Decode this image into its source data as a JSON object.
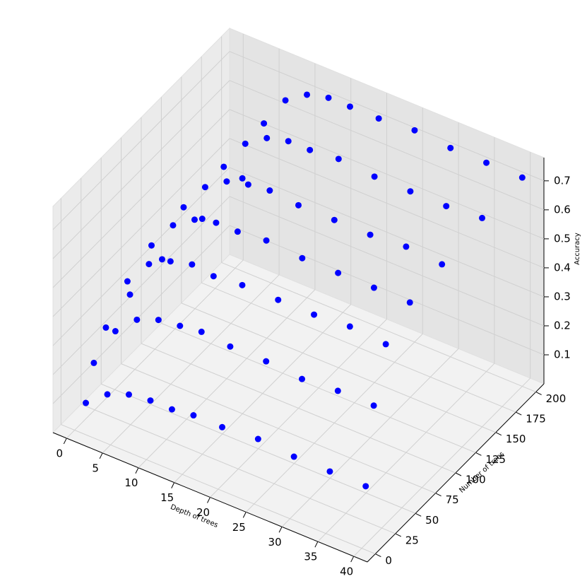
{
  "chart_data": {
    "type": "scatter3d",
    "xlabel": "Depth of trees",
    "ylabel": "Number of trees",
    "zlabel": "Accuracy",
    "color": "#0000ff",
    "xlim": [
      -1.9,
      41.9
    ],
    "ylim": [
      -10,
      210
    ],
    "zlim": [
      0.0,
      0.78
    ],
    "xticks": [
      0,
      5,
      10,
      15,
      20,
      25,
      30,
      35,
      40
    ],
    "yticks": [
      0,
      25,
      50,
      75,
      100,
      125,
      150,
      175,
      200
    ],
    "zticks": [
      0.1,
      0.2,
      0.3,
      0.4,
      0.5,
      0.6,
      0.7
    ],
    "grid": true,
    "x": [
      1,
      1,
      1,
      1,
      1,
      1,
      1,
      4,
      4,
      4,
      4,
      4,
      4,
      4,
      7,
      7,
      7,
      7,
      7,
      7,
      7,
      10,
      10,
      10,
      10,
      10,
      10,
      10,
      13,
      13,
      13,
      13,
      13,
      13,
      13,
      16,
      16,
      16,
      16,
      16,
      16,
      16,
      20,
      20,
      20,
      20,
      20,
      20,
      20,
      25,
      25,
      25,
      25,
      25,
      25,
      25,
      30,
      30,
      30,
      30,
      30,
      30,
      30,
      35,
      35,
      35,
      35,
      35,
      35,
      35,
      40,
      40,
      40,
      40,
      40,
      40,
      40
    ],
    "y": [
      5,
      15,
      30,
      60,
      100,
      150,
      200,
      5,
      15,
      30,
      60,
      100,
      150,
      200,
      5,
      15,
      30,
      60,
      100,
      150,
      200,
      5,
      15,
      30,
      60,
      100,
      150,
      200,
      5,
      15,
      30,
      60,
      100,
      150,
      200,
      5,
      15,
      30,
      60,
      100,
      150,
      200,
      5,
      15,
      30,
      60,
      100,
      150,
      200,
      5,
      15,
      30,
      60,
      100,
      150,
      200,
      5,
      15,
      30,
      60,
      100,
      150,
      200,
      5,
      15,
      30,
      60,
      100,
      150,
      200,
      5,
      15,
      30,
      60,
      100,
      150,
      200
    ],
    "z": [
      0.09,
      0.2,
      0.28,
      0.31,
      0.32,
      0.32,
      0.32,
      0.15,
      0.34,
      0.47,
      0.51,
      0.53,
      0.53,
      0.54,
      0.18,
      0.41,
      0.56,
      0.61,
      0.63,
      0.64,
      0.65,
      0.19,
      0.44,
      0.6,
      0.66,
      0.68,
      0.69,
      0.7,
      0.19,
      0.45,
      0.62,
      0.68,
      0.7,
      0.71,
      0.72,
      0.2,
      0.46,
      0.61,
      0.68,
      0.71,
      0.71,
      0.72,
      0.2,
      0.45,
      0.62,
      0.69,
      0.7,
      0.72,
      0.72,
      0.21,
      0.45,
      0.62,
      0.68,
      0.7,
      0.71,
      0.73,
      0.2,
      0.44,
      0.62,
      0.68,
      0.7,
      0.71,
      0.72,
      0.2,
      0.45,
      0.63,
      0.68,
      0.71,
      0.71,
      0.72,
      0.2,
      0.45,
      0.62,
      0.68,
      0.7,
      0.72,
      0.72
    ]
  }
}
